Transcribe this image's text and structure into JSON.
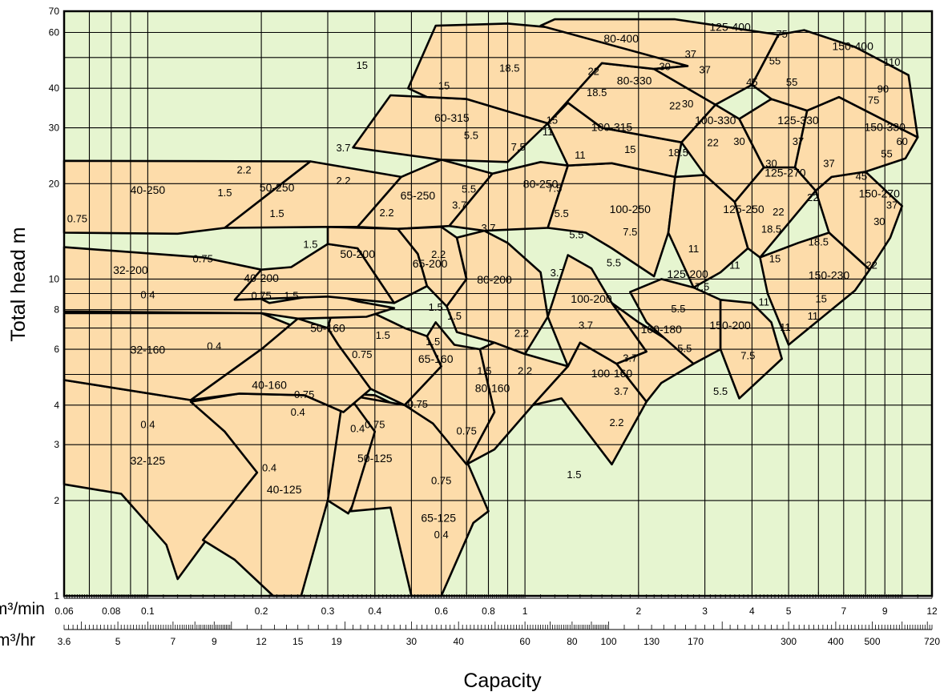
{
  "chart_data": {
    "type": "scatter",
    "title": "",
    "xlabel": "Capacity",
    "ylabel": "Total head m",
    "x_scale": "log",
    "y_scale": "log",
    "xlim": [
      0.06,
      12
    ],
    "ylim": [
      1,
      70
    ],
    "grid": true,
    "plot_background": "#e6f5d0",
    "region_fill": "#fddcaa",
    "x_axis_units": [
      {
        "unit": "m³/min",
        "ticks": [
          "0.06",
          "0.08",
          "0.1",
          "0.2",
          "0.3",
          "0.4",
          "0.6",
          "0.8",
          "1",
          "2",
          "3",
          "4",
          "5",
          "7",
          "9",
          "12"
        ]
      },
      {
        "unit": "m³/hr",
        "ticks": [
          "3.6",
          "5",
          "7",
          "9",
          "12",
          "15",
          "19",
          "30",
          "40",
          "60",
          "80",
          "100",
          "130",
          "170",
          "300",
          "400",
          "500",
          "720"
        ]
      }
    ],
    "y_ticks": [
      "1",
      "2",
      "3",
      "4",
      "6",
      "8",
      "10",
      "20",
      "30",
      "40",
      "60",
      "70"
    ],
    "pump_models": [
      {
        "model": "32-125",
        "capacity_m3min": 0.1,
        "head_m": 2.65
      },
      {
        "model": "40-125",
        "capacity_m3min": 0.23,
        "head_m": 2.15
      },
      {
        "model": "50-125",
        "capacity_m3min": 0.4,
        "head_m": 2.7
      },
      {
        "model": "65-125",
        "capacity_m3min": 0.59,
        "head_m": 1.75
      },
      {
        "model": "32-160",
        "capacity_m3min": 0.1,
        "head_m": 5.95
      },
      {
        "model": "40-160",
        "capacity_m3min": 0.21,
        "head_m": 4.6
      },
      {
        "model": "50-160",
        "capacity_m3min": 0.3,
        "head_m": 6.95
      },
      {
        "model": "65-160",
        "capacity_m3min": 0.58,
        "head_m": 5.55
      },
      {
        "model": "80-160",
        "capacity_m3min": 0.82,
        "head_m": 4.5
      },
      {
        "model": "100-160",
        "capacity_m3min": 1.7,
        "head_m": 5.0
      },
      {
        "model": "32-200",
        "capacity_m3min": 0.09,
        "head_m": 10.6
      },
      {
        "model": "40-200",
        "capacity_m3min": 0.2,
        "head_m": 10.0
      },
      {
        "model": "50-200",
        "capacity_m3min": 0.36,
        "head_m": 11.9
      },
      {
        "model": "65-200",
        "capacity_m3min": 0.56,
        "head_m": 11.1
      },
      {
        "model": "80-200",
        "capacity_m3min": 0.83,
        "head_m": 9.9
      },
      {
        "model": "100-200",
        "capacity_m3min": 1.5,
        "head_m": 8.6
      },
      {
        "model": "100-180",
        "capacity_m3min": 2.3,
        "head_m": 6.9
      },
      {
        "model": "125-200",
        "capacity_m3min": 2.7,
        "head_m": 10.3
      },
      {
        "model": "150-200",
        "capacity_m3min": 3.5,
        "head_m": 7.1
      },
      {
        "model": "40-250",
        "capacity_m3min": 0.1,
        "head_m": 19.0
      },
      {
        "model": "50-250",
        "capacity_m3min": 0.22,
        "head_m": 19.3
      },
      {
        "model": "65-250",
        "capacity_m3min": 0.52,
        "head_m": 18.2
      },
      {
        "model": "80-250",
        "capacity_m3min": 1.1,
        "head_m": 19.8
      },
      {
        "model": "100-250",
        "capacity_m3min": 1.9,
        "head_m": 16.5
      },
      {
        "model": "125-250",
        "capacity_m3min": 3.8,
        "head_m": 16.5
      },
      {
        "model": "125-270",
        "capacity_m3min": 4.9,
        "head_m": 21.5
      },
      {
        "model": "150-270",
        "capacity_m3min": 8.7,
        "head_m": 18.5
      },
      {
        "model": "150-230",
        "capacity_m3min": 6.4,
        "head_m": 10.2
      },
      {
        "model": "60-315",
        "capacity_m3min": 0.64,
        "head_m": 32.0
      },
      {
        "model": "100-315",
        "capacity_m3min": 1.7,
        "head_m": 30.0
      },
      {
        "model": "100-330",
        "capacity_m3min": 3.2,
        "head_m": 31.5
      },
      {
        "model": "125-330",
        "capacity_m3min": 5.3,
        "head_m": 31.5
      },
      {
        "model": "150-330",
        "capacity_m3min": 9.0,
        "head_m": 30.0
      },
      {
        "model": "80-330",
        "capacity_m3min": 1.95,
        "head_m": 42.0
      },
      {
        "model": "80-400",
        "capacity_m3min": 1.8,
        "head_m": 57.0
      },
      {
        "model": "125-400",
        "capacity_m3min": 3.5,
        "head_m": 62.0
      },
      {
        "model": "150-400",
        "capacity_m3min": 7.4,
        "head_m": 54.0
      }
    ],
    "motor_kw_labels": [
      {
        "kw": "0.4",
        "capacity_m3min": 0.1,
        "head_m": 3.45
      },
      {
        "kw": "0.4",
        "capacity_m3min": 0.21,
        "head_m": 2.52
      },
      {
        "kw": "0.4",
        "capacity_m3min": 0.25,
        "head_m": 3.78
      },
      {
        "kw": "0.4",
        "capacity_m3min": 0.36,
        "head_m": 3.35
      },
      {
        "kw": "0.4",
        "capacity_m3min": 0.6,
        "head_m": 1.55
      },
      {
        "kw": "0.4",
        "capacity_m3min": 0.1,
        "head_m": 8.85
      },
      {
        "kw": "0.4",
        "capacity_m3min": 0.15,
        "head_m": 6.1
      },
      {
        "kw": "0.75",
        "capacity_m3min": 0.065,
        "head_m": 15.4
      },
      {
        "kw": "0.75",
        "capacity_m3min": 0.14,
        "head_m": 11.5
      },
      {
        "kw": "0.75",
        "capacity_m3min": 0.2,
        "head_m": 8.8
      },
      {
        "kw": "0.75",
        "capacity_m3min": 0.26,
        "head_m": 4.3
      },
      {
        "kw": "0.75",
        "capacity_m3min": 0.37,
        "head_m": 5.75
      },
      {
        "kw": "0.75",
        "capacity_m3min": 0.4,
        "head_m": 3.45
      },
      {
        "kw": "0.75",
        "capacity_m3min": 0.52,
        "head_m": 4.0
      },
      {
        "kw": "0.75",
        "capacity_m3min": 0.7,
        "head_m": 3.3
      },
      {
        "kw": "0.75",
        "capacity_m3min": 0.6,
        "head_m": 2.3
      },
      {
        "kw": "1.5",
        "capacity_m3min": 0.16,
        "head_m": 18.6
      },
      {
        "kw": "1.5",
        "capacity_m3min": 0.22,
        "head_m": 16.0
      },
      {
        "kw": "1.5",
        "capacity_m3min": 0.27,
        "head_m": 12.8
      },
      {
        "kw": "1.5",
        "capacity_m3min": 0.24,
        "head_m": 8.8
      },
      {
        "kw": "1.5",
        "capacity_m3min": 0.42,
        "head_m": 6.6
      },
      {
        "kw": "1.5",
        "capacity_m3min": 0.57,
        "head_m": 6.3
      },
      {
        "kw": "1.5",
        "capacity_m3min": 0.58,
        "head_m": 8.1
      },
      {
        "kw": "1.5",
        "capacity_m3min": 0.65,
        "head_m": 7.6
      },
      {
        "kw": "1.5",
        "capacity_m3min": 0.78,
        "head_m": 5.1
      },
      {
        "kw": "1.5",
        "capacity_m3min": 1.35,
        "head_m": 2.4
      },
      {
        "kw": "2.2",
        "capacity_m3min": 0.18,
        "head_m": 22.0
      },
      {
        "kw": "2.2",
        "capacity_m3min": 0.33,
        "head_m": 20.3
      },
      {
        "kw": "2.2",
        "capacity_m3min": 0.43,
        "head_m": 16.1
      },
      {
        "kw": "2.2",
        "capacity_m3min": 0.59,
        "head_m": 11.9
      },
      {
        "kw": "2.2",
        "capacity_m3min": 0.98,
        "head_m": 6.7
      },
      {
        "kw": "2.2",
        "capacity_m3min": 1.0,
        "head_m": 5.1
      },
      {
        "kw": "2.2",
        "capacity_m3min": 1.75,
        "head_m": 3.5
      },
      {
        "kw": "3.7",
        "capacity_m3min": 0.33,
        "head_m": 25.8
      },
      {
        "kw": "3.7",
        "capacity_m3min": 0.67,
        "head_m": 17.0
      },
      {
        "kw": "3.7",
        "capacity_m3min": 0.8,
        "head_m": 14.4
      },
      {
        "kw": "3.7",
        "capacity_m3min": 1.22,
        "head_m": 10.4
      },
      {
        "kw": "3.7",
        "capacity_m3min": 1.45,
        "head_m": 7.1
      },
      {
        "kw": "3.7",
        "capacity_m3min": 1.9,
        "head_m": 5.6
      },
      {
        "kw": "3.7",
        "capacity_m3min": 1.8,
        "head_m": 4.4
      },
      {
        "kw": "5.5",
        "capacity_m3min": 0.72,
        "head_m": 28.2
      },
      {
        "kw": "5.5",
        "capacity_m3min": 0.71,
        "head_m": 19.1
      },
      {
        "kw": "5.5",
        "capacity_m3min": 1.25,
        "head_m": 16.0
      },
      {
        "kw": "5.5",
        "capacity_m3min": 1.37,
        "head_m": 13.7
      },
      {
        "kw": "5.5",
        "capacity_m3min": 1.72,
        "head_m": 11.2
      },
      {
        "kw": "5.5",
        "capacity_m3min": 2.55,
        "head_m": 8.0
      },
      {
        "kw": "5.5",
        "capacity_m3min": 2.65,
        "head_m": 6.0
      },
      {
        "kw": "5.5",
        "capacity_m3min": 3.3,
        "head_m": 4.4
      },
      {
        "kw": "7.5",
        "capacity_m3min": 0.96,
        "head_m": 25.9
      },
      {
        "kw": "7.5",
        "capacity_m3min": 1.2,
        "head_m": 19.2
      },
      {
        "kw": "7.5",
        "capacity_m3min": 1.9,
        "head_m": 14.0
      },
      {
        "kw": "7.5",
        "capacity_m3min": 2.95,
        "head_m": 9.4
      },
      {
        "kw": "7.5",
        "capacity_m3min": 3.9,
        "head_m": 5.7
      },
      {
        "kw": "11",
        "capacity_m3min": 1.15,
        "head_m": 29.0
      },
      {
        "kw": "11",
        "capacity_m3min": 1.4,
        "head_m": 24.5
      },
      {
        "kw": "11",
        "capacity_m3min": 2.8,
        "head_m": 12.4
      },
      {
        "kw": "11",
        "capacity_m3min": 3.6,
        "head_m": 11.0
      },
      {
        "kw": "11",
        "capacity_m3min": 4.3,
        "head_m": 8.4
      },
      {
        "kw": "11",
        "capacity_m3min": 4.9,
        "head_m": 7.0
      },
      {
        "kw": "11",
        "capacity_m3min": 5.8,
        "head_m": 7.6
      },
      {
        "kw": "15",
        "capacity_m3min": 0.37,
        "head_m": 47.0
      },
      {
        "kw": "15",
        "capacity_m3min": 0.61,
        "head_m": 40.5
      },
      {
        "kw": "15",
        "capacity_m3min": 1.18,
        "head_m": 31.5
      },
      {
        "kw": "15",
        "capacity_m3min": 1.9,
        "head_m": 25.5
      },
      {
        "kw": "15",
        "capacity_m3min": 4.6,
        "head_m": 11.5
      },
      {
        "kw": "15",
        "capacity_m3min": 6.1,
        "head_m": 8.6
      },
      {
        "kw": "18.5",
        "capacity_m3min": 0.91,
        "head_m": 46.0
      },
      {
        "kw": "18.5",
        "capacity_m3min": 1.55,
        "head_m": 38.5
      },
      {
        "kw": "18.5",
        "capacity_m3min": 2.55,
        "head_m": 24.9
      },
      {
        "kw": "18.5",
        "capacity_m3min": 4.5,
        "head_m": 14.3
      },
      {
        "kw": "18.5",
        "capacity_m3min": 6.0,
        "head_m": 13.0
      },
      {
        "kw": "22",
        "capacity_m3min": 1.52,
        "head_m": 45.0
      },
      {
        "kw": "22",
        "capacity_m3min": 2.5,
        "head_m": 35.0
      },
      {
        "kw": "22",
        "capacity_m3min": 3.15,
        "head_m": 26.8
      },
      {
        "kw": "22",
        "capacity_m3min": 4.7,
        "head_m": 16.2
      },
      {
        "kw": "22",
        "capacity_m3min": 5.8,
        "head_m": 18.0
      },
      {
        "kw": "22",
        "capacity_m3min": 8.3,
        "head_m": 11.0
      },
      {
        "kw": "30",
        "capacity_m3min": 2.35,
        "head_m": 46.5
      },
      {
        "kw": "30",
        "capacity_m3min": 2.7,
        "head_m": 35.5
      },
      {
        "kw": "30",
        "capacity_m3min": 3.7,
        "head_m": 27.0
      },
      {
        "kw": "30",
        "capacity_m3min": 4.5,
        "head_m": 23.0
      },
      {
        "kw": "30",
        "capacity_m3min": 8.7,
        "head_m": 15.1
      },
      {
        "kw": "37",
        "capacity_m3min": 2.75,
        "head_m": 51.0
      },
      {
        "kw": "37",
        "capacity_m3min": 3.0,
        "head_m": 45.5
      },
      {
        "kw": "37",
        "capacity_m3min": 5.3,
        "head_m": 27.0
      },
      {
        "kw": "37",
        "capacity_m3min": 6.4,
        "head_m": 23.0
      },
      {
        "kw": "37",
        "capacity_m3min": 9.4,
        "head_m": 17.0
      },
      {
        "kw": "45",
        "capacity_m3min": 4.0,
        "head_m": 41.5
      },
      {
        "kw": "45",
        "capacity_m3min": 7.8,
        "head_m": 21.0
      },
      {
        "kw": "55",
        "capacity_m3min": 4.6,
        "head_m": 48.5
      },
      {
        "kw": "55",
        "capacity_m3min": 5.1,
        "head_m": 41.5
      },
      {
        "kw": "55",
        "capacity_m3min": 9.1,
        "head_m": 24.7
      },
      {
        "kw": "60",
        "capacity_m3min": 10.0,
        "head_m": 27.0
      },
      {
        "kw": "75",
        "capacity_m3min": 4.8,
        "head_m": 59.0
      },
      {
        "kw": "75",
        "capacity_m3min": 8.4,
        "head_m": 36.5
      },
      {
        "kw": "90",
        "capacity_m3min": 8.9,
        "head_m": 39.5
      },
      {
        "kw": "110",
        "capacity_m3min": 9.4,
        "head_m": 48.0
      }
    ]
  }
}
